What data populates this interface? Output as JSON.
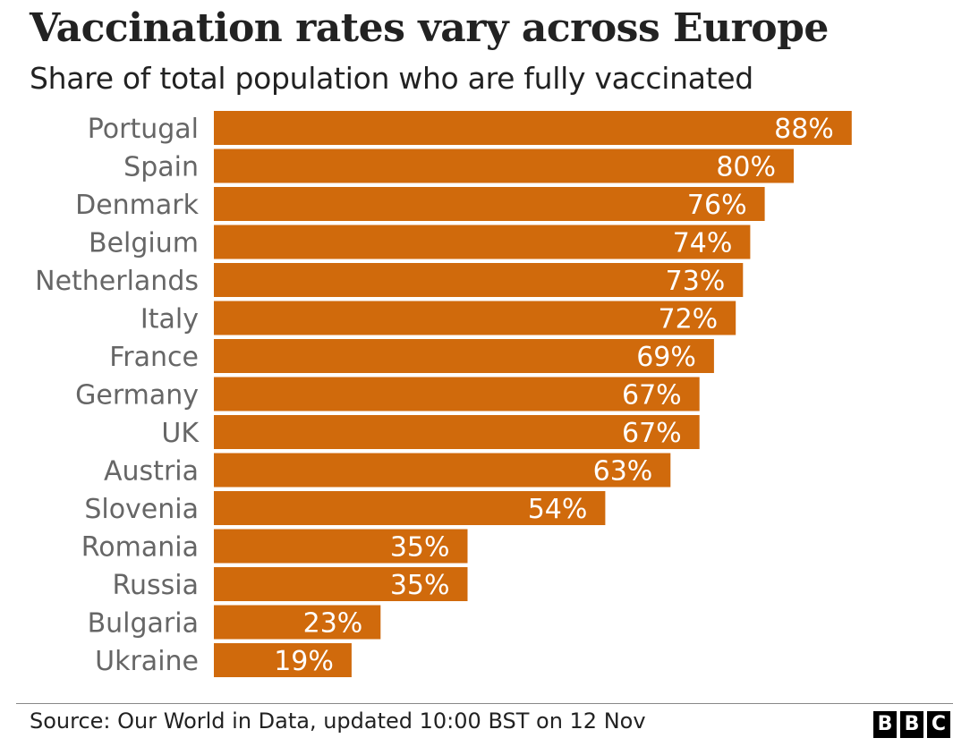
{
  "chart_data": {
    "type": "bar",
    "orientation": "horizontal",
    "title": "Vaccination rates vary across Europe",
    "subtitle": "Share of total population who are fully vaccinated",
    "categories": [
      "Portugal",
      "Spain",
      "Denmark",
      "Belgium",
      "Netherlands",
      "Italy",
      "France",
      "Germany",
      "UK",
      "Austria",
      "Slovenia",
      "Romania",
      "Russia",
      "Bulgaria",
      "Ukraine"
    ],
    "values": [
      88,
      80,
      76,
      74,
      73,
      72,
      69,
      67,
      67,
      63,
      54,
      35,
      35,
      23,
      19
    ],
    "value_labels": [
      "88%",
      "80%",
      "76%",
      "74%",
      "73%",
      "72%",
      "69%",
      "67%",
      "67%",
      "63%",
      "54%",
      "35%",
      "35%",
      "23%",
      "19%"
    ],
    "unit": "%",
    "xlim": [
      0,
      100
    ],
    "grid": false,
    "bar_color": "#D06A0C"
  },
  "footer": {
    "source": "Source: Our World in Data, updated 10:00 BST on 12 Nov",
    "logo_letters": [
      "B",
      "B",
      "C"
    ]
  }
}
